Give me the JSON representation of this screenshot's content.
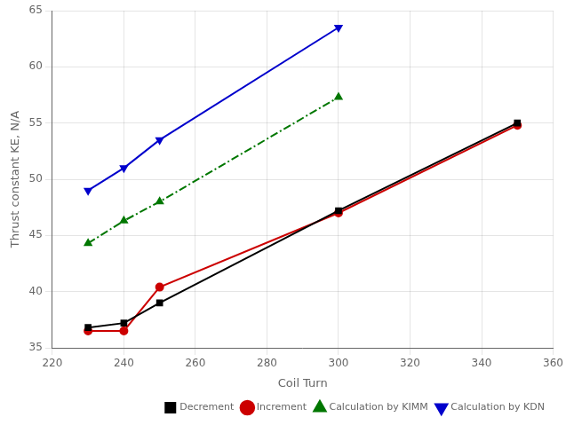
{
  "chart_data": {
    "type": "line",
    "xlabel": "Coil Turn",
    "ylabel": "Thrust constant KE, N/A",
    "xlim": [
      220,
      360
    ],
    "ylim": [
      35,
      65
    ],
    "xticks": [
      220,
      240,
      260,
      280,
      300,
      320,
      340,
      360
    ],
    "yticks": [
      35,
      40,
      45,
      50,
      55,
      60,
      65
    ],
    "grid": true,
    "legend": "lower right",
    "series": [
      {
        "name": "Decrement",
        "x": [
          230,
          240,
          250,
          300,
          350
        ],
        "values": [
          36.8,
          37.2,
          39.0,
          47.2,
          55.0
        ],
        "color": "#000000",
        "marker": "square",
        "line_style": "solid"
      },
      {
        "name": "Increment",
        "x": [
          230,
          240,
          250,
          300,
          350
        ],
        "values": [
          36.5,
          36.5,
          40.4,
          47.0,
          54.8
        ],
        "color": "#cc0000",
        "marker": "circle",
        "line_style": "solid"
      },
      {
        "name": "Calculation by KIMM",
        "x": [
          230,
          240,
          250,
          300
        ],
        "values": [
          44.3,
          46.3,
          48.0,
          57.3
        ],
        "color": "#007700",
        "marker": "triangle-up",
        "line_style": "dashdot"
      },
      {
        "name": "Calculation by KDN",
        "x": [
          230,
          240,
          250,
          300
        ],
        "values": [
          49.0,
          51.0,
          53.5,
          63.5
        ],
        "color": "#0000cc",
        "marker": "triangle-down",
        "line_style": "solid"
      }
    ]
  }
}
